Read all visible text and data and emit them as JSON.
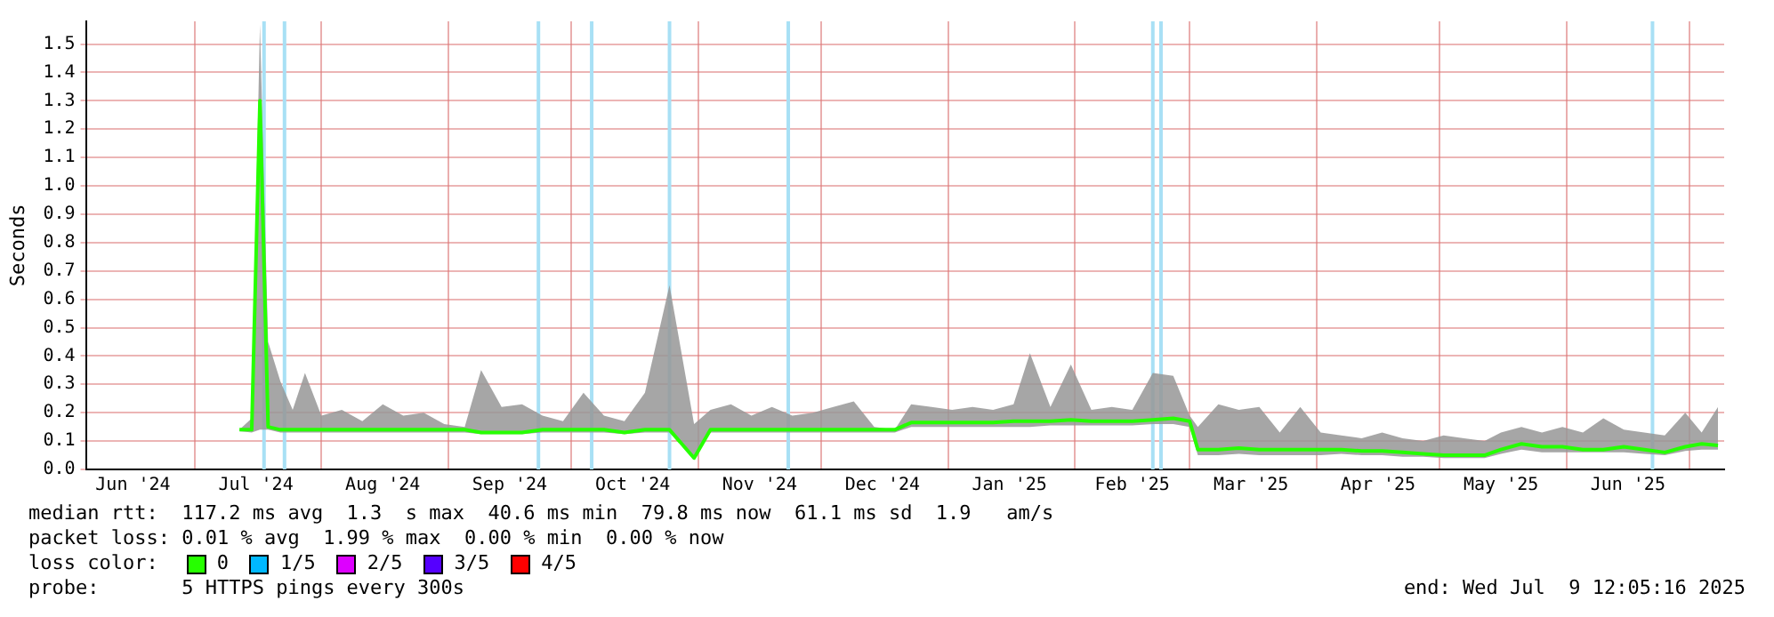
{
  "chart_data": {
    "type": "line",
    "ylabel": "Seconds",
    "xlim": [
      "2024-06-04T12:05",
      "2025-07-09T12:05"
    ],
    "xticks": [
      {
        "value": "2024-06-16",
        "label": "Jun '24"
      },
      {
        "value": "2024-07-01",
        "label": null
      },
      {
        "value": "2024-07-16",
        "label": "Jul '24"
      },
      {
        "value": "2024-08-01",
        "label": null
      },
      {
        "value": "2024-08-16",
        "label": "Aug '24"
      },
      {
        "value": "2024-09-01",
        "label": null
      },
      {
        "value": "2024-09-16",
        "label": "Sep '24"
      },
      {
        "value": "2024-10-01",
        "label": null
      },
      {
        "value": "2024-10-16",
        "label": "Oct '24"
      },
      {
        "value": "2024-11-01",
        "label": null
      },
      {
        "value": "2024-11-16",
        "label": "Nov '24"
      },
      {
        "value": "2024-12-01",
        "label": null
      },
      {
        "value": "2024-12-16",
        "label": "Dec '24"
      },
      {
        "value": "2025-01-01",
        "label": null
      },
      {
        "value": "2025-01-16",
        "label": "Jan '25"
      },
      {
        "value": "2025-02-01",
        "label": null
      },
      {
        "value": "2025-02-15",
        "label": "Feb '25"
      },
      {
        "value": "2025-03-01",
        "label": null
      },
      {
        "value": "2025-03-16",
        "label": "Mar '25"
      },
      {
        "value": "2025-04-01",
        "label": null
      },
      {
        "value": "2025-04-16",
        "label": "Apr '25"
      },
      {
        "value": "2025-05-01",
        "label": null
      },
      {
        "value": "2025-05-16",
        "label": "May '25"
      },
      {
        "value": "2025-06-01",
        "label": null
      },
      {
        "value": "2025-06-16",
        "label": "Jun '25"
      },
      {
        "value": "2025-07-01",
        "label": null
      }
    ],
    "ylim": [
      0,
      1.58
    ],
    "yticks": [
      {
        "value": 0,
        "label": "0.0"
      },
      0.1,
      0.2,
      0.3,
      0.4,
      0.5,
      0.6,
      0.7,
      0.8,
      0.9,
      {
        "value": 1,
        "label": "1.0"
      },
      1.1,
      1.2,
      1.3,
      1.4,
      1.5
    ],
    "grid": true,
    "legend": "bottom",
    "legend_title": "loss color:",
    "x": [
      "2024-07-12",
      "2024-07-15",
      "2024-07-17",
      "2024-07-19",
      "2024-07-22",
      "2024-07-25",
      "2024-07-28",
      "2024-08-01",
      "2024-08-06",
      "2024-08-11",
      "2024-08-16",
      "2024-08-21",
      "2024-08-26",
      "2024-08-31",
      "2024-09-05",
      "2024-09-09",
      "2024-09-14",
      "2024-09-19",
      "2024-09-24",
      "2024-09-29",
      "2024-10-04",
      "2024-10-09",
      "2024-10-14",
      "2024-10-19",
      "2024-10-25",
      "2024-10-31",
      "2024-11-04",
      "2024-11-09",
      "2024-11-14",
      "2024-11-19",
      "2024-11-24",
      "2024-11-29",
      "2024-12-04",
      "2024-12-09",
      "2024-12-14",
      "2024-12-19",
      "2024-12-23",
      "2024-12-28",
      "2025-01-02",
      "2025-01-07",
      "2025-01-12",
      "2025-01-17",
      "2025-01-21",
      "2025-01-26",
      "2025-01-31",
      "2025-02-05",
      "2025-02-10",
      "2025-02-15",
      "2025-02-20",
      "2025-02-25",
      "2025-03-01",
      "2025-03-03",
      "2025-03-08",
      "2025-03-13",
      "2025-03-18",
      "2025-03-23",
      "2025-03-28",
      "2025-04-02",
      "2025-04-07",
      "2025-04-12",
      "2025-04-17",
      "2025-04-22",
      "2025-04-27",
      "2025-05-02",
      "2025-05-07",
      "2025-05-12",
      "2025-05-16",
      "2025-05-21",
      "2025-05-26",
      "2025-05-31",
      "2025-06-05",
      "2025-06-10",
      "2025-06-15",
      "2025-06-20",
      "2025-06-25",
      "2025-06-30",
      "2025-07-04",
      "2025-07-08"
    ],
    "series": [
      {
        "name": "0",
        "color": "#26ff00",
        "values": [
          0.14,
          0.14,
          1.3,
          0.15,
          0.14,
          0.14,
          0.14,
          0.14,
          0.14,
          0.14,
          0.14,
          0.14,
          0.14,
          0.14,
          0.14,
          0.13,
          0.13,
          0.13,
          0.14,
          0.14,
          0.14,
          0.14,
          0.13,
          0.14,
          0.14,
          0.04,
          0.14,
          0.14,
          0.14,
          0.14,
          0.14,
          0.14,
          0.14,
          0.14,
          0.14,
          0.14,
          0.165,
          0.165,
          0.165,
          0.165,
          0.165,
          0.17,
          0.17,
          0.17,
          0.175,
          0.17,
          0.17,
          0.17,
          0.175,
          0.18,
          0.17,
          0.07,
          0.07,
          0.075,
          0.07,
          0.07,
          0.07,
          0.07,
          0.07,
          0.065,
          0.065,
          0.06,
          0.055,
          0.05,
          0.05,
          0.05,
          0.07,
          0.09,
          0.08,
          0.08,
          0.07,
          0.07,
          0.08,
          0.07,
          0.06,
          0.08,
          0.09,
          0.085
        ],
        "lower": [
          0.135,
          0.13,
          0.14,
          0.14,
          0.13,
          0.13,
          0.13,
          0.13,
          0.13,
          0.13,
          0.13,
          0.13,
          0.13,
          0.13,
          0.13,
          0.125,
          0.125,
          0.125,
          0.13,
          0.13,
          0.13,
          0.13,
          0.125,
          0.13,
          0.13,
          0.04,
          0.13,
          0.13,
          0.13,
          0.13,
          0.13,
          0.13,
          0.13,
          0.13,
          0.13,
          0.13,
          0.15,
          0.15,
          0.15,
          0.15,
          0.15,
          0.15,
          0.15,
          0.155,
          0.155,
          0.155,
          0.155,
          0.155,
          0.16,
          0.16,
          0.15,
          0.05,
          0.05,
          0.055,
          0.05,
          0.05,
          0.05,
          0.05,
          0.055,
          0.05,
          0.05,
          0.045,
          0.045,
          0.04,
          0.04,
          0.04,
          0.055,
          0.07,
          0.06,
          0.06,
          0.06,
          0.06,
          0.06,
          0.055,
          0.05,
          0.065,
          0.07,
          0.07
        ],
        "upper": [
          0.14,
          0.18,
          1.57,
          0.45,
          0.31,
          0.21,
          0.34,
          0.19,
          0.21,
          0.17,
          0.23,
          0.19,
          0.2,
          0.16,
          0.15,
          0.35,
          0.22,
          0.23,
          0.19,
          0.17,
          0.27,
          0.19,
          0.17,
          0.27,
          0.65,
          0.16,
          0.21,
          0.23,
          0.19,
          0.22,
          0.19,
          0.2,
          0.22,
          0.24,
          0.15,
          0.14,
          0.23,
          0.22,
          0.21,
          0.22,
          0.21,
          0.23,
          0.41,
          0.22,
          0.37,
          0.21,
          0.22,
          0.21,
          0.34,
          0.33,
          0.19,
          0.15,
          0.23,
          0.21,
          0.22,
          0.13,
          0.22,
          0.13,
          0.12,
          0.11,
          0.13,
          0.11,
          0.1,
          0.12,
          0.11,
          0.1,
          0.13,
          0.15,
          0.13,
          0.15,
          0.13,
          0.18,
          0.14,
          0.13,
          0.12,
          0.2,
          0.13,
          0.22
        ]
      },
      {
        "name": "1/5",
        "color": "#00b8ff",
        "values": [
          null,
          null,
          null,
          null,
          null,
          null,
          null,
          null,
          null,
          null,
          null,
          null,
          null,
          null,
          null,
          null,
          null,
          null,
          null,
          null,
          null,
          null,
          null,
          null,
          null,
          null,
          null,
          null,
          null,
          null,
          null,
          null,
          null,
          null,
          null,
          null,
          null,
          null,
          null,
          null,
          null,
          null,
          null,
          null,
          null,
          null,
          null,
          null,
          null,
          null,
          null,
          null,
          null,
          null,
          null,
          null,
          null,
          null,
          null,
          null,
          null,
          null,
          null,
          null,
          null,
          null,
          null,
          null,
          null,
          null,
          null,
          null,
          null,
          null,
          null,
          null,
          null,
          null
        ]
      },
      {
        "name": "2/5",
        "color": "#dd00ff",
        "values": [
          null,
          null,
          null,
          null,
          null,
          null,
          null,
          null,
          null,
          null,
          null,
          null,
          null,
          null,
          null,
          null,
          null,
          null,
          null,
          null,
          null,
          null,
          null,
          null,
          null,
          null,
          null,
          null,
          null,
          null,
          null,
          null,
          null,
          null,
          null,
          null,
          null,
          null,
          null,
          null,
          null,
          null,
          null,
          null,
          null,
          null,
          null,
          null,
          null,
          null,
          null,
          null,
          null,
          null,
          null,
          null,
          null,
          null,
          null,
          null,
          null,
          null,
          null,
          null,
          null,
          null,
          null,
          null,
          null,
          null,
          null,
          null,
          null,
          null,
          null,
          null,
          null,
          null
        ]
      },
      {
        "name": "3/5",
        "color": "#5500ff",
        "values": [
          null,
          null,
          null,
          null,
          null,
          null,
          null,
          null,
          null,
          null,
          null,
          null,
          null,
          null,
          null,
          null,
          null,
          null,
          null,
          null,
          null,
          null,
          null,
          null,
          null,
          null,
          null,
          null,
          null,
          null,
          null,
          null,
          null,
          null,
          null,
          null,
          null,
          null,
          null,
          null,
          null,
          null,
          null,
          null,
          null,
          null,
          null,
          null,
          null,
          null,
          null,
          null,
          null,
          null,
          null,
          null,
          null,
          null,
          null,
          null,
          null,
          null,
          null,
          null,
          null,
          null,
          null,
          null,
          null,
          null,
          null,
          null,
          null,
          null,
          null,
          null,
          null,
          null
        ]
      },
      {
        "name": "4/5",
        "color": "#ff0000",
        "values": [
          null,
          null,
          null,
          null,
          null,
          null,
          null,
          null,
          null,
          null,
          null,
          null,
          null,
          null,
          null,
          null,
          null,
          null,
          null,
          null,
          null,
          null,
          null,
          null,
          null,
          null,
          null,
          null,
          null,
          null,
          null,
          null,
          null,
          null,
          null,
          null,
          null,
          null,
          null,
          null,
          null,
          null,
          null,
          null,
          null,
          null,
          null,
          null,
          null,
          null,
          null,
          null,
          null,
          null,
          null,
          null,
          null,
          null,
          null,
          null,
          null,
          null,
          null,
          null,
          null,
          null,
          null,
          null,
          null,
          null,
          null,
          null,
          null,
          null,
          null,
          null,
          null,
          null
        ]
      }
    ],
    "ref_lines": [
      {
        "axis": "x",
        "value": "2024-07-18",
        "color": "#a8e0f5"
      },
      {
        "axis": "x",
        "value": "2024-07-23",
        "color": "#a8e0f5"
      },
      {
        "axis": "x",
        "value": "2024-09-23",
        "color": "#a8e0f5"
      },
      {
        "axis": "x",
        "value": "2024-10-06",
        "color": "#a8e0f5"
      },
      {
        "axis": "x",
        "value": "2024-10-25",
        "color": "#a8e0f5"
      },
      {
        "axis": "x",
        "value": "2024-11-23",
        "color": "#a8e0f5"
      },
      {
        "axis": "x",
        "value": "2025-02-20",
        "color": "#a8e0f5"
      },
      {
        "axis": "x",
        "value": "2025-02-22",
        "color": "#a8e0f5"
      },
      {
        "axis": "x",
        "value": "2025-06-22",
        "color": "#a8e0f5"
      }
    ],
    "annotations": [
      "median rtt:  117.2 ms avg  1.3  s max  40.6 ms min  79.8 ms now  61.1 ms sd  1.9   am/s",
      "packet loss: 0.01 % avg  1.99 % max  0.00 % min  0.00 % now",
      "probe:       5 HTTPS pings every 300s",
      "end: Wed Jul  9 12:05:16 2025"
    ]
  }
}
